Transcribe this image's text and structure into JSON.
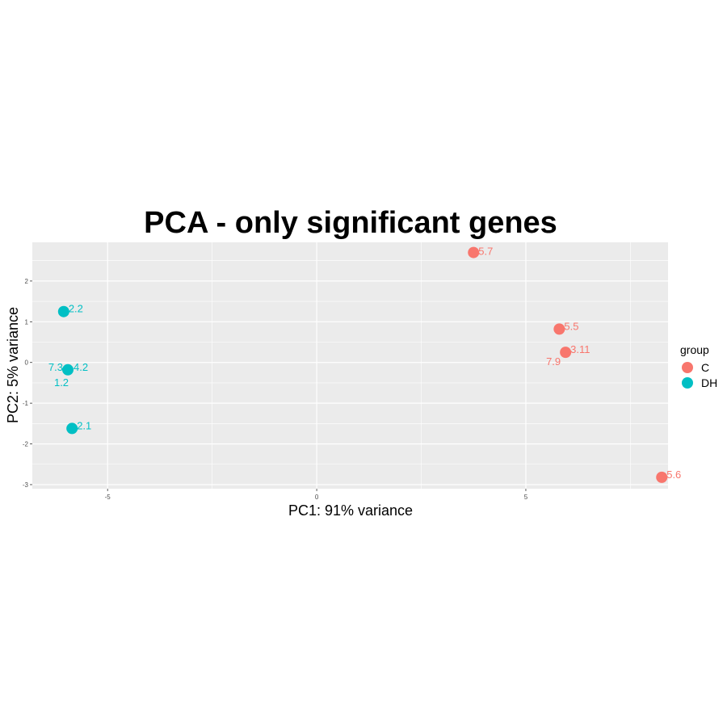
{
  "chart_data": {
    "type": "scatter",
    "title": "PCA - only significant genes",
    "xlabel": "PC1: 91% variance",
    "ylabel": "PC2: 5% variance",
    "xlim": [
      -6.8,
      8.4
    ],
    "ylim": [
      -3.1,
      2.95
    ],
    "x_ticks": [
      {
        "value": -5,
        "label": "-5"
      },
      {
        "value": 0,
        "label": "0"
      },
      {
        "value": 5,
        "label": "5"
      }
    ],
    "y_ticks": [
      {
        "value": 2,
        "label": "2"
      },
      {
        "value": 1,
        "label": "1"
      },
      {
        "value": 0,
        "label": "0"
      },
      {
        "value": -1,
        "label": "-1"
      },
      {
        "value": -2,
        "label": "-2"
      },
      {
        "value": -3,
        "label": "-3"
      }
    ],
    "grid": true,
    "legend": {
      "title": "group",
      "position": "right"
    },
    "series": [
      {
        "name": "C",
        "color": "#F8766D",
        "points": [
          {
            "label": "5.7",
            "x": 3.75,
            "y": 2.7
          },
          {
            "label": "5.5",
            "x": 5.8,
            "y": 0.82
          },
          {
            "label": "3.11",
            "x": 5.95,
            "y": 0.25
          },
          {
            "label": "7.9",
            "x": 5.95,
            "y": 0.25
          },
          {
            "label": "5.6",
            "x": 8.25,
            "y": -2.82
          }
        ]
      },
      {
        "name": "DH",
        "color": "#00BFC4",
        "points": [
          {
            "label": "2.2",
            "x": -6.05,
            "y": 1.25
          },
          {
            "label": "4.2",
            "x": -5.95,
            "y": -0.18
          },
          {
            "label": "7.3",
            "x": -5.95,
            "y": -0.18
          },
          {
            "label": "1.2",
            "x": -5.95,
            "y": -0.18
          },
          {
            "label": "2.1",
            "x": -5.85,
            "y": -1.62
          }
        ]
      }
    ]
  }
}
